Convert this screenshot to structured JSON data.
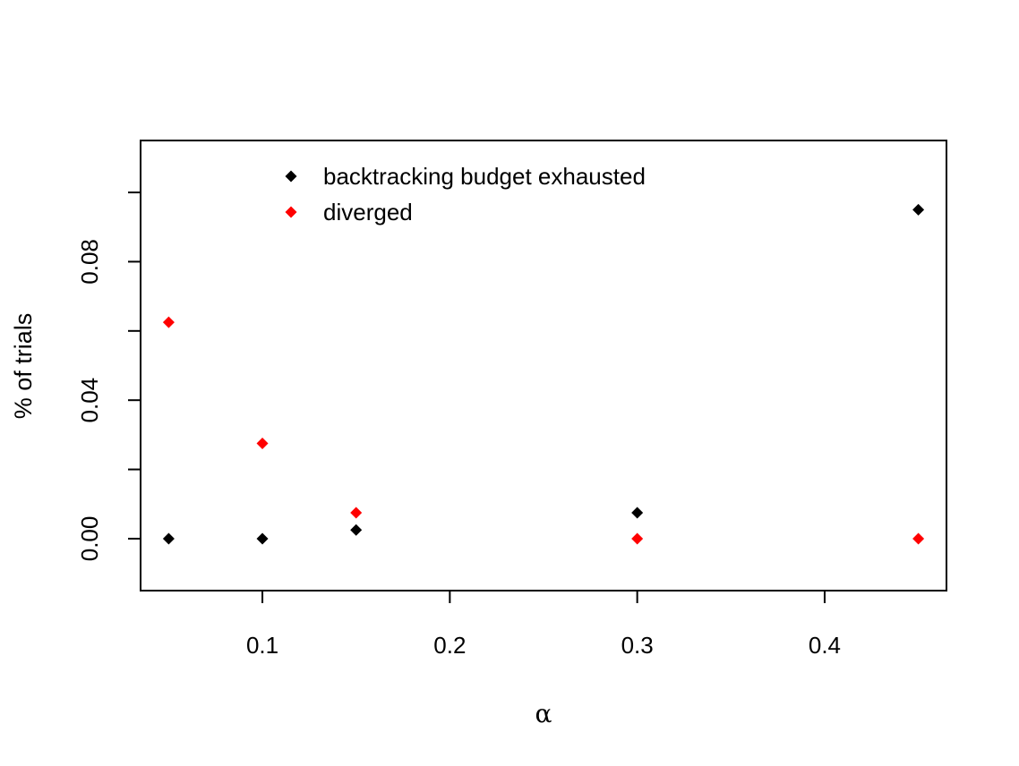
{
  "chart_data": {
    "type": "scatter",
    "xlabel": "α",
    "ylabel": "% of trials",
    "xlim": [
      0.035,
      0.465
    ],
    "ylim": [
      -0.015,
      0.115
    ],
    "x_ticks": [
      0.1,
      0.2,
      0.3,
      0.4
    ],
    "x_tick_labels": [
      "0.1",
      "0.2",
      "0.3",
      "0.4"
    ],
    "y_ticks": [
      0.0,
      0.02,
      0.04,
      0.06,
      0.08,
      0.1
    ],
    "y_tick_labels": [
      "0.00",
      "",
      "0.04",
      "",
      "0.08",
      ""
    ],
    "legend_position": "top-center",
    "grid": false,
    "series": [
      {
        "name": "backtracking budget exhausted",
        "color": "#000000",
        "marker": "diamond",
        "x": [
          0.05,
          0.1,
          0.15,
          0.3,
          0.45
        ],
        "y": [
          0.0,
          0.0,
          0.0025,
          0.0075,
          0.095
        ]
      },
      {
        "name": "diverged",
        "color": "#ff0000",
        "marker": "diamond",
        "x": [
          0.05,
          0.1,
          0.15,
          0.3,
          0.45
        ],
        "y": [
          0.0625,
          0.0275,
          0.0075,
          0.0,
          0.0
        ]
      }
    ]
  }
}
